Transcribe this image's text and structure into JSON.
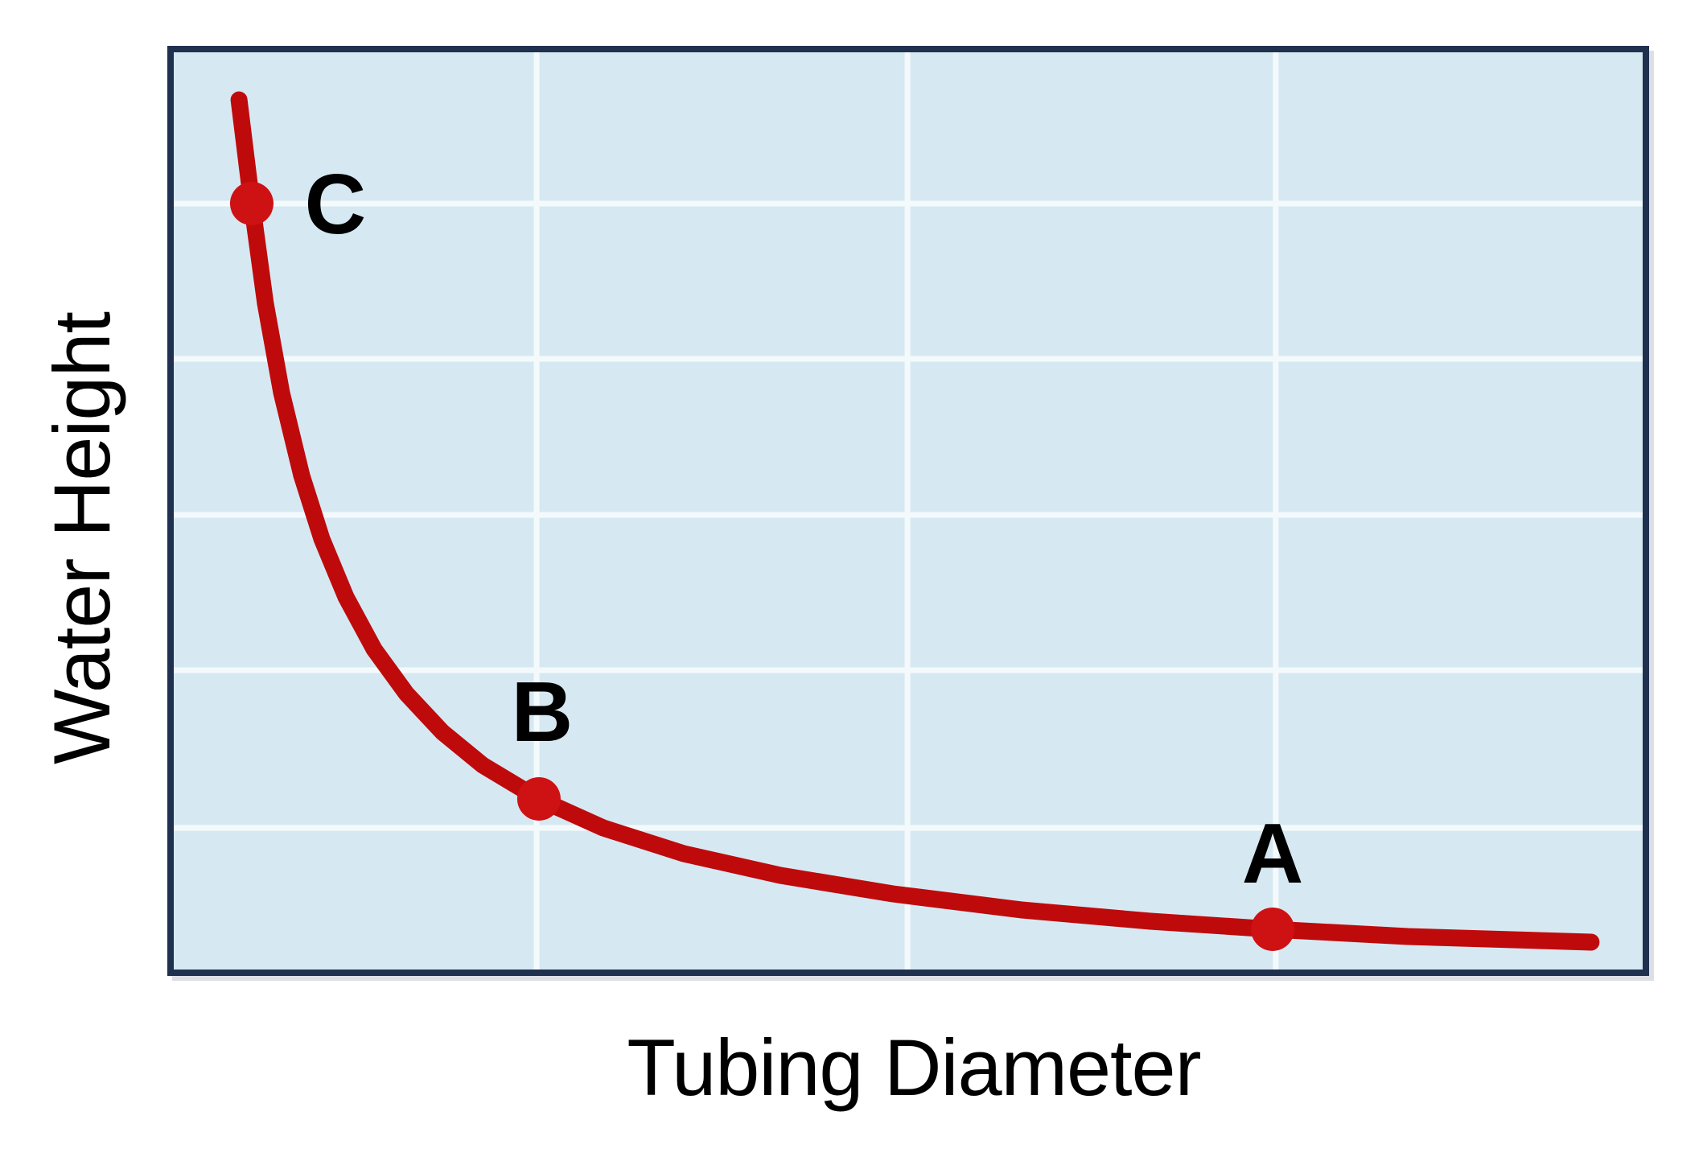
{
  "figure": {
    "title": ""
  },
  "colors": {
    "plot_background": "#d6e9f2",
    "gridline": "#f4fafc",
    "plot_border": "#20304f",
    "plot_shadow": "#cdd3dc",
    "curve": "#bf0a0c",
    "marker": "#ce1113",
    "label_text": "#000000"
  },
  "chart_data": {
    "type": "line",
    "title": "",
    "xlabel": "Tubing Diameter",
    "ylabel": "Water Height",
    "x_ticks": [],
    "y_ticks": [],
    "axes_numeric": false,
    "grid": {
      "show": true,
      "columns": 4,
      "rows": 6
    },
    "relationship": "inverse: water height decreases as tubing diameter increases (height proportional to 1/diameter)",
    "series": [
      {
        "name": "water height vs tubing diameter",
        "style": "smooth curve, thick, rounded caps",
        "points_normalized": [
          [
            0.0444,
            0.9482
          ],
          [
            0.0531,
            0.8351
          ],
          [
            0.0624,
            0.7263
          ],
          [
            0.0734,
            0.6289
          ],
          [
            0.0871,
            0.5386
          ],
          [
            0.1008,
            0.4693
          ],
          [
            0.1172,
            0.4061
          ],
          [
            0.1364,
            0.3491
          ],
          [
            0.1583,
            0.3009
          ],
          [
            0.1829,
            0.2588
          ],
          [
            0.2103,
            0.2228
          ],
          [
            0.2486,
            0.186
          ],
          [
            0.2924,
            0.1544
          ],
          [
            0.3472,
            0.1263
          ],
          [
            0.4129,
            0.1026
          ],
          [
            0.4896,
            0.0825
          ],
          [
            0.5772,
            0.0649
          ],
          [
            0.6648,
            0.0526
          ],
          [
            0.7481,
            0.0439
          ],
          [
            0.8401,
            0.036
          ],
          [
            0.9649,
            0.0298
          ]
        ]
      }
    ],
    "marked_points": [
      {
        "label": "C",
        "x": 0.0531,
        "y": 0.8351,
        "description": "small tubing diameter, high water height"
      },
      {
        "label": "B",
        "x": 0.2486,
        "y": 0.186,
        "description": "medium tubing diameter, low water height"
      },
      {
        "label": "A",
        "x": 0.7481,
        "y": 0.0439,
        "description": "large tubing diameter, lowest water height"
      }
    ]
  }
}
